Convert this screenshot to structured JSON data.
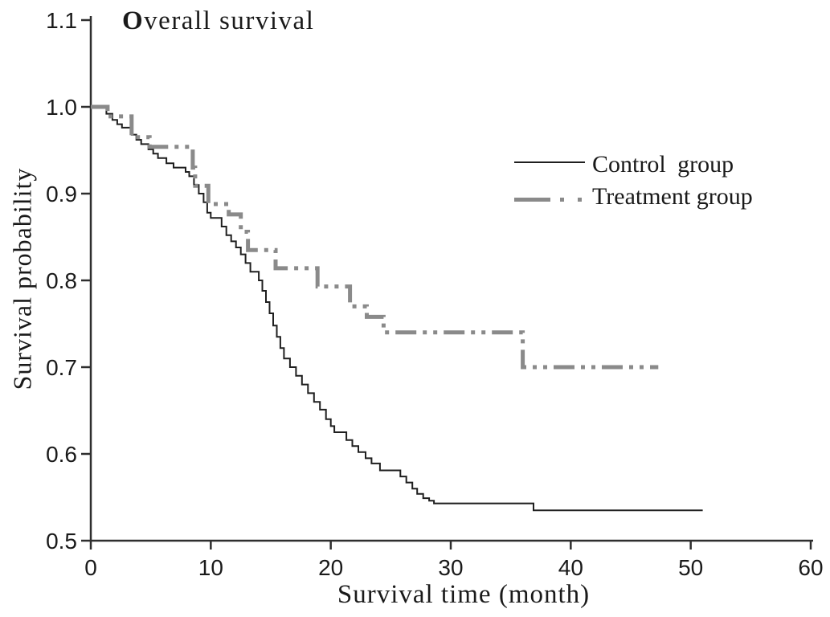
{
  "figure": {
    "background": "#ffffff",
    "text_color": "#1a1a1a"
  },
  "chart_data": {
    "type": "line",
    "subtype": "kaplan_meier_step_curve",
    "title": "Overall survival",
    "xlabel": "Survival time (month)",
    "ylabel": "Survival probability",
    "xlim": [
      0,
      60
    ],
    "ylim": [
      0.5,
      1.1
    ],
    "x_ticks": [
      0,
      10,
      20,
      30,
      40,
      50,
      60
    ],
    "y_ticks": [
      1.1,
      1.0,
      0.9,
      0.8,
      0.7,
      0.6,
      0.5
    ],
    "grid": false,
    "axis_color": "#2e2e2e",
    "legend": {
      "position": "upper_right",
      "entries": [
        {
          "label": "Control group",
          "line_style": "solid_thin",
          "color": "#1f1f1f"
        },
        {
          "label": "Treatment group",
          "line_style": "dash_dot_dot_thick",
          "color": "#8a8a8a"
        }
      ]
    },
    "series": [
      {
        "name": "Control group",
        "color": "#1f1f1f",
        "line_width": 2,
        "dash": null,
        "step_points_month_probability": [
          [
            0,
            1.0
          ],
          [
            1.3,
            0.992
          ],
          [
            1.8,
            0.985
          ],
          [
            2.2,
            0.98
          ],
          [
            2.6,
            0.976
          ],
          [
            3.4,
            0.968
          ],
          [
            3.8,
            0.962
          ],
          [
            4.2,
            0.957
          ],
          [
            4.8,
            0.951
          ],
          [
            5.2,
            0.946
          ],
          [
            5.6,
            0.941
          ],
          [
            6.3,
            0.935
          ],
          [
            6.9,
            0.93
          ],
          [
            7.9,
            0.925
          ],
          [
            8.2,
            0.92
          ],
          [
            8.6,
            0.91
          ],
          [
            9.0,
            0.9
          ],
          [
            9.4,
            0.89
          ],
          [
            9.7,
            0.878
          ],
          [
            10.0,
            0.872
          ],
          [
            10.9,
            0.862
          ],
          [
            11.3,
            0.852
          ],
          [
            11.7,
            0.845
          ],
          [
            12.1,
            0.838
          ],
          [
            12.5,
            0.83
          ],
          [
            12.9,
            0.82
          ],
          [
            13.3,
            0.81
          ],
          [
            14.0,
            0.8
          ],
          [
            14.3,
            0.788
          ],
          [
            14.6,
            0.775
          ],
          [
            14.9,
            0.762
          ],
          [
            15.2,
            0.748
          ],
          [
            15.5,
            0.735
          ],
          [
            15.8,
            0.722
          ],
          [
            16.1,
            0.71
          ],
          [
            16.6,
            0.7
          ],
          [
            17.1,
            0.69
          ],
          [
            17.6,
            0.68
          ],
          [
            18.1,
            0.67
          ],
          [
            18.6,
            0.66
          ],
          [
            19.1,
            0.651
          ],
          [
            19.6,
            0.64
          ],
          [
            20.0,
            0.632
          ],
          [
            20.3,
            0.625
          ],
          [
            21.3,
            0.616
          ],
          [
            21.8,
            0.609
          ],
          [
            22.3,
            0.602
          ],
          [
            22.9,
            0.595
          ],
          [
            23.4,
            0.589
          ],
          [
            24.1,
            0.581
          ],
          [
            25.8,
            0.574
          ],
          [
            26.3,
            0.567
          ],
          [
            26.8,
            0.56
          ],
          [
            27.2,
            0.554
          ],
          [
            27.7,
            0.549
          ],
          [
            28.2,
            0.546
          ],
          [
            28.6,
            0.543
          ],
          [
            36.9,
            0.535
          ],
          [
            51.0,
            0.535
          ]
        ]
      },
      {
        "name": "Treatment group",
        "color": "#8a8a8a",
        "line_width": 5,
        "dash": [
          26,
          8,
          5,
          8,
          5,
          8
        ],
        "step_points_month_probability": [
          [
            0,
            1.0
          ],
          [
            1.4,
            0.989
          ],
          [
            3.4,
            0.965
          ],
          [
            4.9,
            0.954
          ],
          [
            8.5,
            0.93
          ],
          [
            8.7,
            0.909
          ],
          [
            9.8,
            0.888
          ],
          [
            11.5,
            0.876
          ],
          [
            12.5,
            0.856
          ],
          [
            13.1,
            0.835
          ],
          [
            15.4,
            0.814
          ],
          [
            18.9,
            0.793
          ],
          [
            21.6,
            0.77
          ],
          [
            23.0,
            0.758
          ],
          [
            24.4,
            0.74
          ],
          [
            36.0,
            0.7
          ],
          [
            47.3,
            0.7
          ]
        ]
      }
    ]
  }
}
